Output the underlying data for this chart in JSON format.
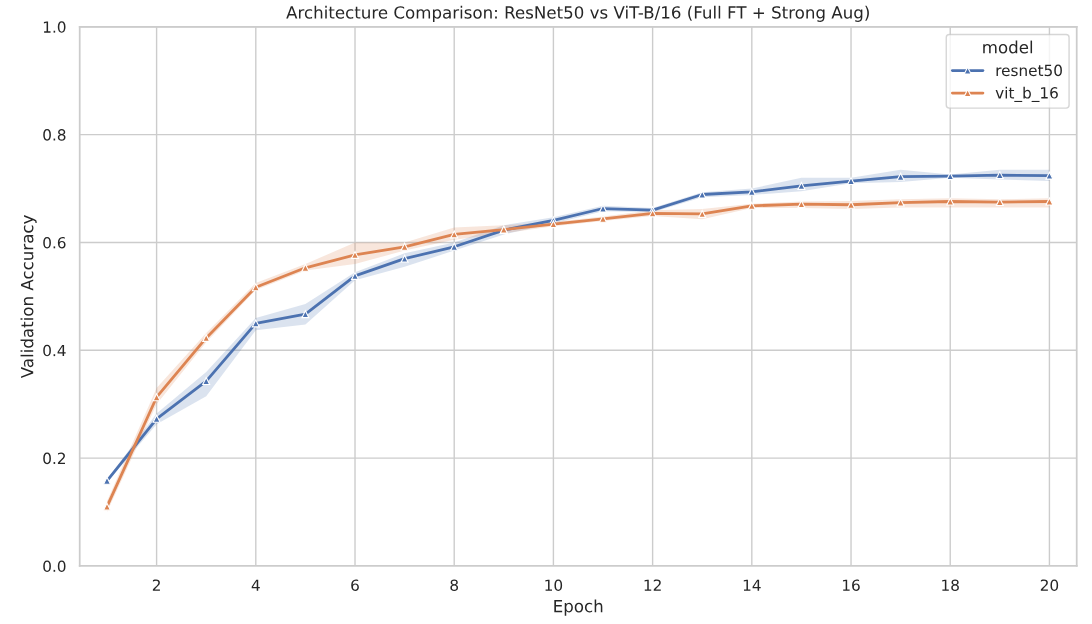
{
  "chart_data": {
    "type": "line",
    "title": "Architecture Comparison: ResNet50 vs ViT-B/16 (Full FT + Strong Aug)",
    "xlabel": "Epoch",
    "ylabel": "Validation Accuracy",
    "legend_title": "model",
    "x": [
      1,
      2,
      3,
      4,
      5,
      6,
      7,
      8,
      9,
      10,
      11,
      12,
      13,
      14,
      15,
      16,
      17,
      18,
      19,
      20
    ],
    "series": [
      {
        "name": "resnet50",
        "color": "#4c72b0",
        "values": [
          0.158,
          0.273,
          0.343,
          0.45,
          0.467,
          0.538,
          0.57,
          0.592,
          0.623,
          0.641,
          0.663,
          0.66,
          0.689,
          0.694,
          0.705,
          0.714,
          0.722,
          0.723,
          0.725,
          0.724
        ],
        "lower": [
          0.155,
          0.263,
          0.315,
          0.437,
          0.448,
          0.53,
          0.555,
          0.585,
          0.615,
          0.635,
          0.658,
          0.656,
          0.684,
          0.688,
          0.695,
          0.71,
          0.712,
          0.72,
          0.717,
          0.714
        ],
        "upper": [
          0.161,
          0.283,
          0.36,
          0.46,
          0.486,
          0.545,
          0.58,
          0.6,
          0.632,
          0.647,
          0.668,
          0.664,
          0.693,
          0.7,
          0.72,
          0.72,
          0.735,
          0.726,
          0.735,
          0.735
        ]
      },
      {
        "name": "vit_b_16",
        "color": "#dd8452",
        "values": [
          0.11,
          0.313,
          0.423,
          0.517,
          0.553,
          0.577,
          0.592,
          0.615,
          0.624,
          0.634,
          0.644,
          0.654,
          0.653,
          0.668,
          0.671,
          0.67,
          0.674,
          0.676,
          0.675,
          0.676
        ],
        "lower": [
          0.1,
          0.3,
          0.415,
          0.512,
          0.548,
          0.56,
          0.585,
          0.605,
          0.617,
          0.63,
          0.64,
          0.649,
          0.643,
          0.664,
          0.664,
          0.662,
          0.665,
          0.665,
          0.665,
          0.665
        ],
        "upper": [
          0.12,
          0.33,
          0.432,
          0.525,
          0.56,
          0.6,
          0.6,
          0.628,
          0.632,
          0.638,
          0.648,
          0.66,
          0.662,
          0.672,
          0.676,
          0.677,
          0.68,
          0.682,
          0.68,
          0.682
        ]
      }
    ],
    "xlim": [
      0.45,
      20.55
    ],
    "xticks": [
      2,
      4,
      6,
      8,
      10,
      12,
      14,
      16,
      18,
      20
    ],
    "ylim": [
      0.0,
      1.0
    ],
    "yticks": [
      {
        "value": 0.0,
        "label": "0.0"
      },
      {
        "value": 0.2,
        "label": "0.2"
      },
      {
        "value": 0.4,
        "label": "0.4"
      },
      {
        "value": 0.6,
        "label": "0.6"
      },
      {
        "value": 0.8,
        "label": "0.8"
      },
      {
        "value": 1.0,
        "label": "1.0"
      }
    ],
    "grid": true,
    "legend": "top right",
    "marker": "triangle",
    "line_style": "solid"
  }
}
